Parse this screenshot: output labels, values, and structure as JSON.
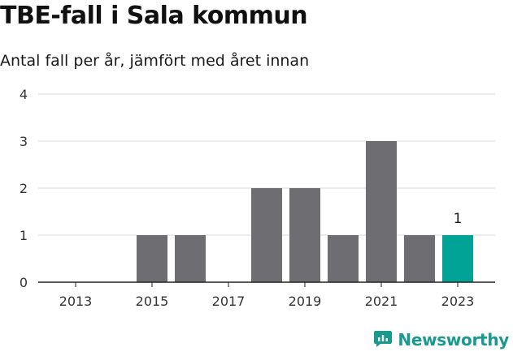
{
  "title": "TBE-fall i Sala kommun",
  "subtitle": "Antal fall per år, jämfört med året innan",
  "brand": {
    "name": "Newsworthy",
    "icon": "newsworthy-logo-icon",
    "color": "#1a9a8e"
  },
  "colors": {
    "bar": "#6e6d72",
    "highlight": "#00a396",
    "grid": "#d9d9d9",
    "axis": "#222222"
  },
  "chart_data": {
    "type": "bar",
    "title": "TBE-fall i Sala kommun",
    "subtitle": "Antal fall per år, jämfört med året innan",
    "xlabel": "",
    "ylabel": "",
    "categories": [
      "2013",
      "2014",
      "2015",
      "2016",
      "2017",
      "2018",
      "2019",
      "2020",
      "2021",
      "2022",
      "2023"
    ],
    "values": [
      0,
      0,
      1,
      1,
      0,
      2,
      2,
      1,
      3,
      1,
      1
    ],
    "highlight_category": "2023",
    "data_labels": [
      {
        "category": "2023",
        "text": "1"
      }
    ],
    "x_tick_labels": [
      "2013",
      "2015",
      "2017",
      "2019",
      "2021",
      "2023"
    ],
    "y_ticks": [
      0,
      1,
      2,
      3,
      4
    ],
    "ylim": [
      0,
      4
    ],
    "grid": true,
    "legend": "none"
  }
}
